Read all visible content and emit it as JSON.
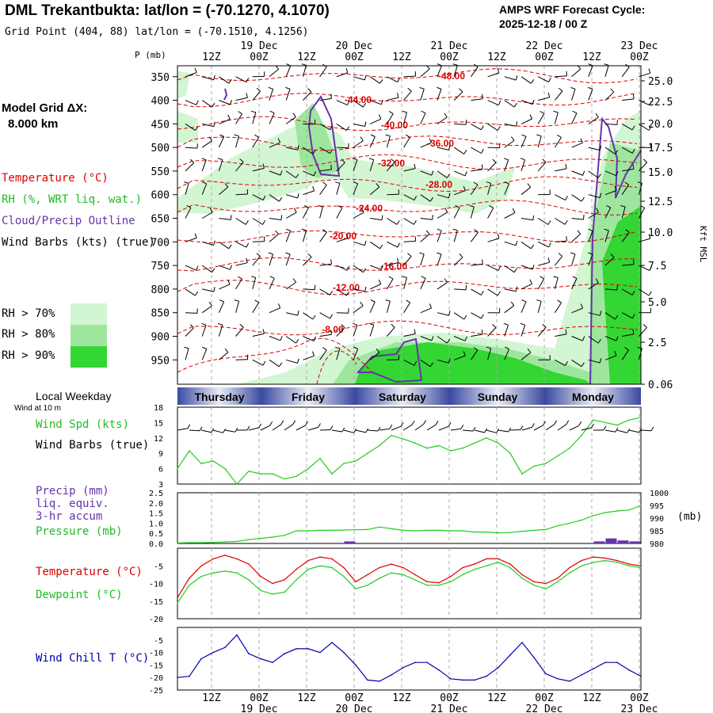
{
  "header": {
    "title": "DML Trekantbukta:  lat/lon = (-70.1270, 4.1070)",
    "subtitle": "Grid Point (404, 88) lat/lon = (-70.1510, 4.1256)",
    "cycle_label": "AMPS WRF Forecast Cycle:",
    "cycle_value": "2025-12-18 / 00  Z"
  },
  "sidebar": {
    "model_grid_label": "Model Grid ΔX:",
    "model_grid_value": "8.000 km",
    "temperature_label": "Temperature (°C)",
    "rh_label": "RH (%, WRT liq. wat.)",
    "cloud_label": "Cloud/Precip Outline",
    "wind_label": "Wind Barbs (kts) (true)",
    "rh70": "RH > 70%",
    "rh80": "RH > 80%",
    "rh90": "RH > 90%",
    "local_weekday": "Local Weekday",
    "wind_at_10m": "Wind at 10 m",
    "wind_spd": "Wind Spd (kts)",
    "wind_barbs2": "Wind Barbs (true)",
    "precip_label": "Precip (mm)",
    "liq_equiv": "liq. equiv.",
    "accum": "3-hr accum",
    "pressure_label": "Pressure (mb)",
    "temp2_label": "Temperature (°C)",
    "dew_label": "Dewpoint (°C)",
    "windchill_label": "Wind Chill T (°C)"
  },
  "colors": {
    "temperature": "#dd0000",
    "rh70": "#d2f5d2",
    "rh80": "#9ee69e",
    "rh90": "#33d633",
    "cloud": "#6633aa",
    "windspd": "#22cc22",
    "dewpoint": "#22cc22",
    "windchill": "#0000aa",
    "precip_bar": "#6633aa"
  },
  "chart_data": [
    {
      "type": "heatmap",
      "name": "cross-section",
      "y_axis_label": "P (mb)",
      "right_axis_label": "Kft MSL",
      "pressure_ticks": [
        350,
        400,
        450,
        500,
        550,
        600,
        650,
        700,
        750,
        800,
        850,
        900,
        950
      ],
      "kft_ticks": [
        "25.0",
        "22.5",
        "20.0",
        "17.5",
        "15.0",
        "12.5",
        "10.0",
        "7.5",
        "5.0",
        "2.5",
        "0.06"
      ],
      "isotherm_labels": [
        "-48.00",
        "-44.00",
        "-40.00",
        "-36.00",
        "-32.00",
        "-28.00",
        "-24.00",
        "-20.00",
        "-16.00",
        "-12.00",
        "-8.00"
      ],
      "isotherm_levels": [
        -48,
        -44,
        -40,
        -36,
        -32,
        -28,
        -24,
        -20,
        -16,
        -12,
        -8
      ],
      "time_top_major": [
        "19 Dec",
        "20 Dec",
        "21 Dec",
        "22 Dec",
        "23 Dec"
      ],
      "time_top_minor": [
        "12Z",
        "00Z",
        "12Z",
        "00Z",
        "12Z",
        "00Z",
        "12Z",
        "00Z",
        "12Z",
        "00Z"
      ]
    },
    {
      "type": "table",
      "name": "weekday-bar",
      "days": [
        "Thursday",
        "Friday",
        "Saturday",
        "Sunday",
        "Monday"
      ]
    },
    {
      "type": "line",
      "name": "wind-speed",
      "y_ticks": [
        "18",
        "15",
        "12",
        "9",
        "6",
        "3"
      ],
      "ylim": [
        3,
        18
      ],
      "series": [
        {
          "values": [
            6,
            9.5,
            7,
            7.5,
            6,
            3,
            5.5,
            5,
            5,
            4,
            4.5,
            6,
            8,
            5,
            7,
            7.5,
            9,
            10.5,
            12.5,
            11.8,
            11,
            10,
            10.5,
            9.5,
            10,
            11,
            12,
            11,
            9,
            5,
            6.5,
            7,
            8.5,
            10,
            12.5,
            15.5,
            15,
            14.5,
            15.5,
            16
          ]
        }
      ]
    },
    {
      "type": "line",
      "name": "precip-pressure",
      "y_ticks_left": [
        "2.5",
        "2.0",
        "1.5",
        "1.0",
        "0.5",
        "0.0"
      ],
      "y_ticks_right": [
        "1000",
        "995",
        "990",
        "985",
        "980"
      ],
      "right_unit": "(mb)",
      "ylim_left": [
        0,
        2.5
      ],
      "ylim_right": [
        980,
        1000
      ],
      "series": [
        {
          "values": [
            980.2,
            980.3,
            980.3,
            980.4,
            980.6,
            980.8,
            981.5,
            982,
            982.5,
            983.2,
            985,
            985,
            985.2,
            985.2,
            985.3,
            985.4,
            985.5,
            986.5,
            985.8,
            985.2,
            985,
            985.2,
            985.2,
            985,
            985,
            984.5,
            984.5,
            984.2,
            984.3,
            984.8,
            985.2,
            985.5,
            987,
            988,
            989.2,
            991,
            992.2,
            992.8,
            993.2,
            995
          ]
        }
      ],
      "precip_bars": [
        {
          "x": 14.5,
          "value": 0.1
        },
        {
          "x": 35.5,
          "value": 0.1
        },
        {
          "x": 36.5,
          "value": 0.25
        },
        {
          "x": 37.5,
          "value": 0.15
        },
        {
          "x": 38.5,
          "value": 0.1
        }
      ]
    },
    {
      "type": "line",
      "name": "temperature-dewpoint",
      "y_ticks": [
        "-5",
        "-10",
        "-15",
        "-20"
      ],
      "ylim": [
        -20,
        0
      ],
      "series": [
        {
          "values": [
            -14,
            -8.5,
            -5,
            -3,
            -2,
            -3,
            -4.5,
            -8,
            -10,
            -9,
            -6,
            -3.5,
            -2.5,
            -3,
            -5.5,
            -9.5,
            -7.5,
            -5.5,
            -4.5,
            -5.5,
            -7.5,
            -9.5,
            -9.8,
            -8,
            -5.5,
            -4.5,
            -3,
            -3,
            -4.5,
            -7.5,
            -9.5,
            -10,
            -8.5,
            -5.5,
            -3.5,
            -2.5,
            -2.8,
            -3.5,
            -4.5,
            -5
          ]
        },
        {
          "values": [
            -15.5,
            -10.5,
            -8,
            -7,
            -6.5,
            -7,
            -9,
            -12,
            -13,
            -12.5,
            -9,
            -6,
            -5,
            -5.5,
            -8,
            -11.5,
            -10.5,
            -8.5,
            -7,
            -7.5,
            -9,
            -10.5,
            -10.5,
            -9.5,
            -7.5,
            -6,
            -5,
            -4,
            -5.5,
            -8.5,
            -10.5,
            -11.5,
            -9.5,
            -7,
            -5,
            -4,
            -3.5,
            -4,
            -5,
            -5.5
          ]
        }
      ]
    },
    {
      "type": "line",
      "name": "wind-chill",
      "y_ticks": [
        "-5",
        "-10",
        "-15",
        "-20",
        "-25"
      ],
      "ylim": [
        -25,
        0
      ],
      "series": [
        {
          "values": [
            -20,
            -19.5,
            -12.5,
            -10,
            -8,
            -3,
            -10.5,
            -12.5,
            -14,
            -10.5,
            -8.5,
            -8.5,
            -10,
            -6,
            -10,
            -15,
            -21,
            -21.5,
            -19,
            -16,
            -14,
            -14,
            -17,
            -20.5,
            -21,
            -21,
            -19.5,
            -16,
            -11,
            -6,
            -12,
            -18.5,
            -20.5,
            -21.5,
            -19,
            -16.5,
            -14,
            -14,
            -17,
            -19.5
          ]
        }
      ]
    },
    {
      "type": "line",
      "name": "bottom-time-axis",
      "time_bottom_minor": [
        "12Z",
        "00Z",
        "12Z",
        "00Z",
        "12Z",
        "00Z",
        "12Z",
        "00Z",
        "12Z",
        "00Z"
      ],
      "time_bottom_major": [
        "19 Dec",
        "20 Dec",
        "21 Dec",
        "22 Dec",
        "23 Dec"
      ]
    }
  ]
}
